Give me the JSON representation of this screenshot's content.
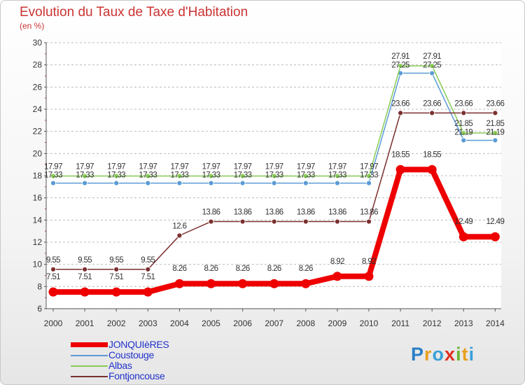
{
  "chart_data": {
    "type": "line",
    "title": "Evolution du Taux de Taxe d'Habitation",
    "unit_label": "(en %)",
    "ylim": [
      6,
      30
    ],
    "y_ticks": [
      "6",
      "8",
      "10",
      "12",
      "14",
      "16",
      "18",
      "20",
      "22",
      "24",
      "26",
      "28",
      "30"
    ],
    "categories": [
      "2000",
      "2001",
      "2002",
      "2003",
      "2004",
      "2005",
      "2006",
      "2007",
      "2008",
      "2009",
      "2010",
      "2011",
      "2012",
      "2013",
      "2014"
    ],
    "series": [
      {
        "name": "Coustouge",
        "color": "#5b9bd5",
        "values": [
          17.33,
          17.33,
          17.33,
          17.33,
          17.33,
          17.33,
          17.33,
          17.33,
          17.33,
          17.33,
          17.33,
          27.25,
          27.25,
          21.19,
          21.19
        ],
        "labels": [
          "17.33",
          "17.33",
          "17.33",
          "17.33",
          "17.33",
          "17.33",
          "17.33",
          "17.33",
          "17.33",
          "17.33",
          "17.33",
          "27.25",
          "27.25",
          "21.19",
          "21.19"
        ]
      },
      {
        "name": "Albas",
        "color": "#88cc55",
        "values": [
          17.97,
          17.97,
          17.97,
          17.97,
          17.97,
          17.97,
          17.97,
          17.97,
          17.97,
          17.97,
          17.97,
          27.91,
          27.91,
          21.85,
          21.85
        ],
        "labels": [
          "17.97",
          "17.97",
          "17.97",
          "17.97",
          "17.97",
          "17.97",
          "17.97",
          "17.97",
          "17.97",
          "17.97",
          "17.97",
          "27.91",
          "27.91",
          "21.85",
          "21.85"
        ]
      },
      {
        "name": "Fontjoncouse",
        "color": "#7b2f2f",
        "values": [
          9.55,
          9.55,
          9.55,
          9.55,
          12.6,
          13.86,
          13.86,
          13.86,
          13.86,
          13.86,
          13.86,
          23.66,
          23.66,
          23.66,
          23.66
        ],
        "labels": [
          "9.55",
          "9.55",
          "9.55",
          "9.55",
          "12.6",
          "13.86",
          "13.86",
          "13.86",
          "13.86",
          "13.86",
          "13.86",
          "23.66",
          "23.66",
          "23.66",
          "23.66"
        ]
      },
      {
        "name": "JONQUIèRES",
        "color": "#ee0000",
        "values": [
          7.51,
          7.51,
          7.51,
          7.51,
          8.26,
          8.26,
          8.26,
          8.26,
          8.26,
          8.92,
          8.92,
          18.55,
          18.55,
          12.49,
          12.49
        ],
        "labels": [
          "7.51",
          "7.51",
          "7.51",
          "7.51",
          "8.26",
          "8.26",
          "8.26",
          "8.26",
          "8.26",
          "8.92",
          "8.92",
          "18.55",
          "18.55",
          "12.49",
          "12.49"
        ]
      }
    ],
    "legend": [
      "JONQUIèRES",
      "Coustouge",
      "Albas",
      "Fontjoncouse"
    ],
    "grid": "horizontal dashed",
    "legend_position": "bottom-left"
  },
  "logo": {
    "p": "P",
    "r": "r",
    "o": "o",
    "x": "x",
    "i": "i",
    "t": "t",
    "i2": "i"
  }
}
